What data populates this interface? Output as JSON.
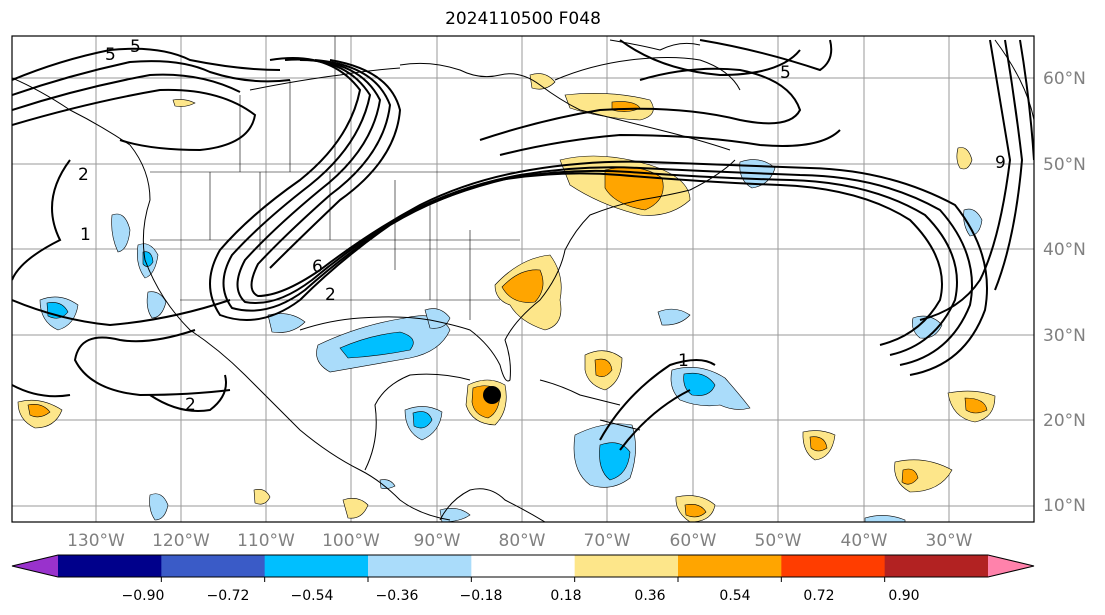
{
  "title": "2024110500 F048",
  "map": {
    "lon_labels": [
      "130°W",
      "120°W",
      "110°W",
      "100°W",
      "90°W",
      "80°W",
      "70°W",
      "60°W",
      "50°W",
      "40°W",
      "30°W"
    ],
    "lat_labels": [
      "60°N",
      "50°N",
      "40°N",
      "30°N",
      "20°N",
      "10°N"
    ],
    "contour_labels": [
      "5",
      "5",
      "5",
      "2",
      "1",
      "2",
      "2",
      "6",
      "1",
      "9"
    ],
    "marker": "storm-center-dot",
    "shading_colors": {
      "neg_strong": "#00bfff",
      "neg_weak": "#aadcfa",
      "pos_weak": "#fde68a",
      "pos_strong": "#ffa500"
    }
  },
  "colorbar": {
    "ticks": [
      "−0.90",
      "−0.72",
      "−0.54",
      "−0.36",
      "−0.18",
      "0.18",
      "0.36",
      "0.54",
      "0.72",
      "0.90"
    ],
    "colors": [
      "#9932cc",
      "#00008b",
      "#3a5bc7",
      "#00bfff",
      "#aadcfa",
      "#ffffff",
      "#fde68a",
      "#ffa500",
      "#ff3d00",
      "#b22222",
      "#ff82ab"
    ]
  }
}
